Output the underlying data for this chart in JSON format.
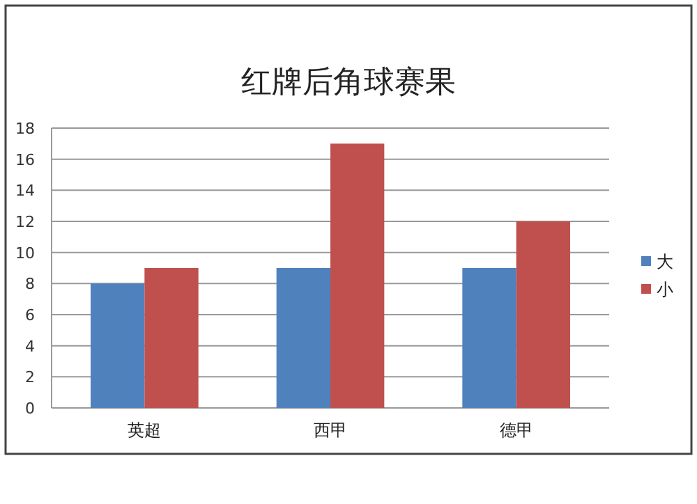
{
  "chart_data": {
    "type": "bar",
    "title": "红牌后角球赛果",
    "categories": [
      "英超",
      "西甲",
      "德甲"
    ],
    "series": [
      {
        "name": "大",
        "color": "#4f81bd",
        "values": [
          8,
          9,
          9
        ]
      },
      {
        "name": "小",
        "color": "#c0504d",
        "values": [
          9,
          17,
          12
        ]
      }
    ],
    "ylim": [
      0,
      18
    ],
    "yticks": [
      0,
      2,
      4,
      6,
      8,
      10,
      12,
      14,
      16,
      18
    ],
    "grid": "y",
    "legend": "right"
  }
}
